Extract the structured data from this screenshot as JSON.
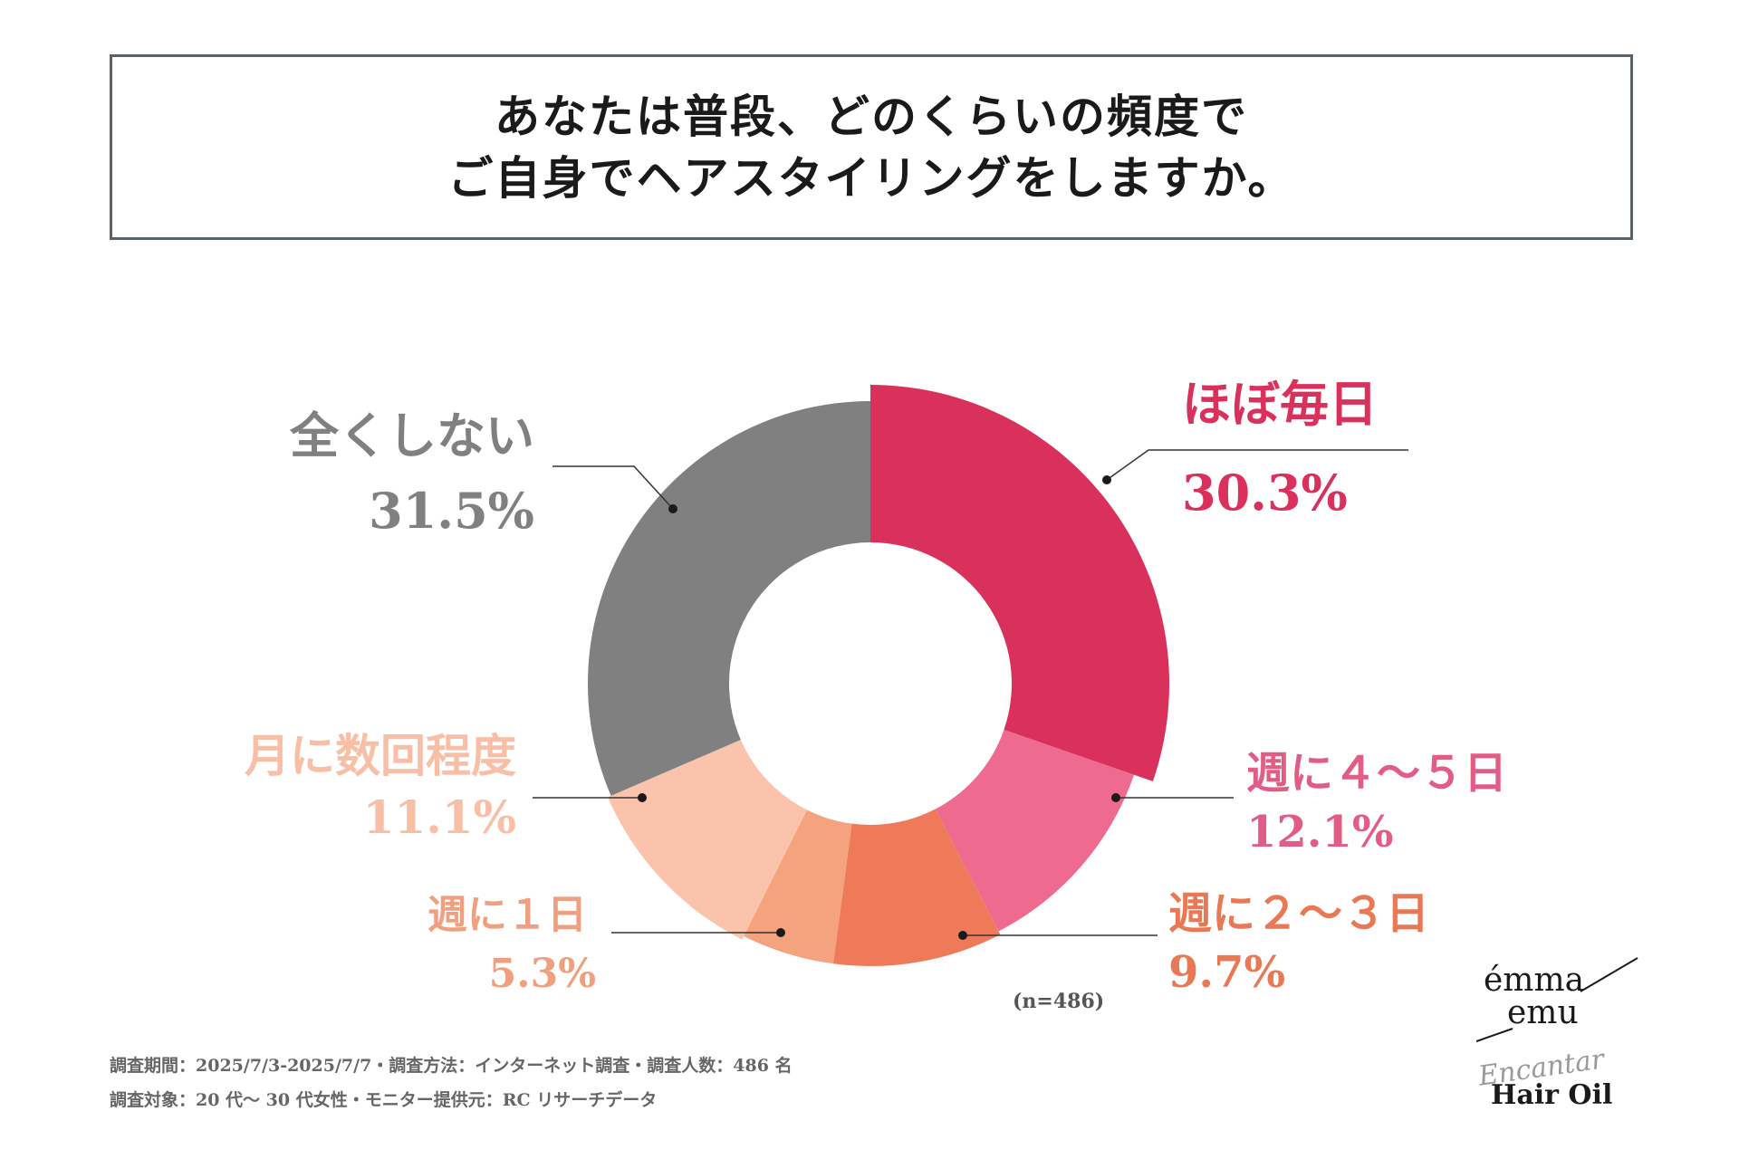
{
  "title": {
    "line1": "あなたは普段、どのくらいの頻度で",
    "line2": "ご自身でヘアスタイリングをしますか。"
  },
  "chart_data": {
    "type": "pie",
    "donut": true,
    "categories": [
      "ほぼ毎日",
      "週に４～５日",
      "週に２～３日",
      "週に１日",
      "月に数回程度",
      "全くしない"
    ],
    "values": [
      30.3,
      12.1,
      9.7,
      5.3,
      11.1,
      31.5
    ],
    "labels": [
      "30.3%",
      "12.1%",
      "9.7%",
      "5.3%",
      "11.1%",
      "31.5%"
    ],
    "colors": [
      "#d9305c",
      "#ee6a8e",
      "#ef7a5a",
      "#f5a27f",
      "#fbc3ab",
      "#808080"
    ],
    "label_colors": [
      "#d9305c",
      "#e25d86",
      "#e97955",
      "#f1a07f",
      "#f8bea6",
      "#808080"
    ]
  },
  "sample_note": "(n=486)",
  "footer": {
    "line1": "調査期間：2025/7/3-2025/7/7・調査方法：インターネット調査・調査人数：486 名",
    "line2": "調査対象：20 代～ 30 代女性・モニター提供元：RC リサーチデータ"
  },
  "logo": {
    "brand_line1": "émma",
    "brand_line2": "emu",
    "script": "Encantar",
    "product": "Hair Oil"
  }
}
